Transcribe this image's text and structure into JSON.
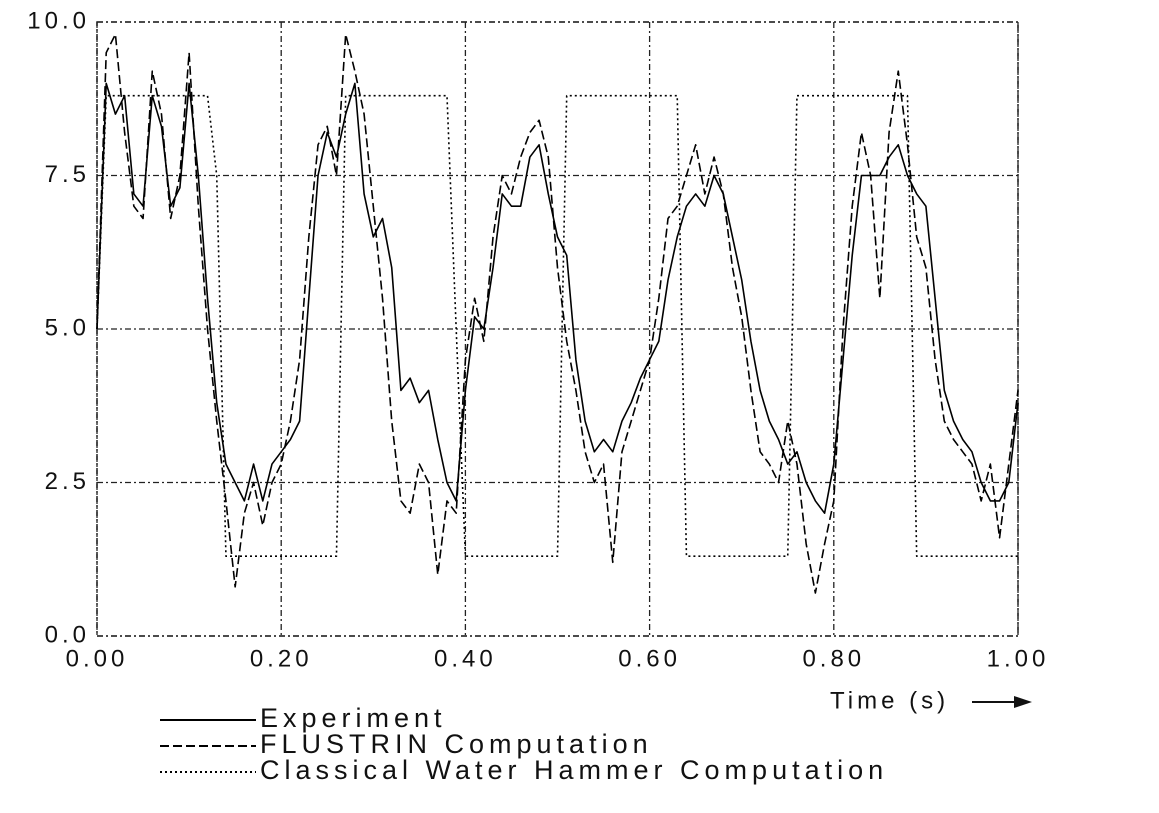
{
  "chart_data": {
    "type": "line",
    "x_label": "Time (s)",
    "x": [
      0,
      0.01,
      0.02,
      0.03,
      0.04,
      0.05,
      0.06,
      0.07,
      0.08,
      0.09,
      0.1,
      0.11,
      0.12,
      0.13,
      0.14,
      0.15,
      0.16,
      0.17,
      0.18,
      0.19,
      0.2,
      0.21,
      0.22,
      0.23,
      0.24,
      0.25,
      0.26,
      0.27,
      0.28,
      0.29,
      0.3,
      0.31,
      0.32,
      0.33,
      0.34,
      0.35,
      0.36,
      0.37,
      0.38,
      0.39,
      0.4,
      0.41,
      0.42,
      0.43,
      0.44,
      0.45,
      0.46,
      0.47,
      0.48,
      0.49,
      0.5,
      0.51,
      0.52,
      0.53,
      0.54,
      0.55,
      0.56,
      0.57,
      0.58,
      0.59,
      0.6,
      0.61,
      0.62,
      0.63,
      0.64,
      0.65,
      0.66,
      0.67,
      0.68,
      0.69,
      0.7,
      0.71,
      0.72,
      0.73,
      0.74,
      0.75,
      0.76,
      0.77,
      0.78,
      0.79,
      0.8,
      0.81,
      0.82,
      0.83,
      0.84,
      0.85,
      0.86,
      0.87,
      0.88,
      0.89,
      0.9,
      0.91,
      0.92,
      0.93,
      0.94,
      0.95,
      0.96,
      0.97,
      0.98,
      0.99,
      1.0
    ],
    "series": [
      {
        "name": "Experiment",
        "color": "#000000",
        "line_style": "solid",
        "values": [
          5.0,
          9.0,
          8.5,
          8.8,
          7.2,
          7.0,
          8.8,
          8.3,
          7.0,
          7.3,
          9.0,
          7.5,
          5.5,
          3.8,
          2.8,
          2.5,
          2.2,
          2.8,
          2.2,
          2.8,
          3.0,
          3.2,
          3.5,
          5.5,
          7.5,
          8.2,
          7.8,
          8.5,
          9.0,
          7.2,
          6.5,
          6.8,
          6.0,
          4.0,
          4.2,
          3.8,
          4.0,
          3.2,
          2.5,
          2.2,
          4.0,
          5.2,
          5.0,
          6.0,
          7.2,
          7.0,
          7.0,
          7.8,
          8.0,
          7.2,
          6.5,
          6.2,
          4.5,
          3.5,
          3.0,
          3.2,
          3.0,
          3.5,
          3.8,
          4.2,
          4.5,
          4.8,
          5.8,
          6.5,
          7.0,
          7.2,
          7.0,
          7.5,
          7.2,
          6.5,
          5.8,
          4.8,
          4.0,
          3.5,
          3.2,
          2.8,
          3.0,
          2.5,
          2.2,
          2.0,
          2.8,
          4.5,
          6.2,
          7.5,
          7.5,
          7.5,
          7.8,
          8.0,
          7.5,
          7.2,
          7.0,
          5.5,
          4.0,
          3.5,
          3.2,
          3.0,
          2.5,
          2.2,
          2.2,
          2.5,
          3.8
        ]
      },
      {
        "name": "FLUSTRIN Computation",
        "color": "#000000",
        "line_style": "dashed",
        "values": [
          5.0,
          9.5,
          9.8,
          8.2,
          7.0,
          6.8,
          9.2,
          8.5,
          6.8,
          7.5,
          9.5,
          7.0,
          5.0,
          3.5,
          2.2,
          0.8,
          2.0,
          2.5,
          1.8,
          2.5,
          2.8,
          3.5,
          4.5,
          6.5,
          8.0,
          8.3,
          7.5,
          9.8,
          9.2,
          8.5,
          7.0,
          5.5,
          3.5,
          2.2,
          2.0,
          2.8,
          2.5,
          1.0,
          2.2,
          2.0,
          4.5,
          5.5,
          4.8,
          6.5,
          7.5,
          7.2,
          7.8,
          8.2,
          8.4,
          7.8,
          6.0,
          4.8,
          4.0,
          3.0,
          2.5,
          2.8,
          1.2,
          3.0,
          3.5,
          4.0,
          4.5,
          5.5,
          6.8,
          7.0,
          7.5,
          8.0,
          7.2,
          7.8,
          7.2,
          6.0,
          5.2,
          4.0,
          3.0,
          2.8,
          2.5,
          3.5,
          2.8,
          1.5,
          0.7,
          1.5,
          2.2,
          5.0,
          7.0,
          8.2,
          7.5,
          5.5,
          8.2,
          9.2,
          8.0,
          6.5,
          6.0,
          4.5,
          3.5,
          3.2,
          3.0,
          2.8,
          2.2,
          2.8,
          1.6,
          2.8,
          4.0
        ]
      },
      {
        "name": "Classical Water Hammer Computation",
        "color": "#000000",
        "line_style": "dotted",
        "values": [
          5.0,
          8.8,
          8.8,
          8.8,
          8.8,
          8.8,
          8.8,
          8.8,
          8.8,
          8.8,
          8.8,
          8.8,
          8.8,
          7.5,
          1.3,
          1.3,
          1.3,
          1.3,
          1.3,
          1.3,
          1.3,
          1.3,
          1.3,
          1.3,
          1.3,
          1.3,
          1.3,
          8.8,
          8.8,
          8.8,
          8.8,
          8.8,
          8.8,
          8.8,
          8.8,
          8.8,
          8.8,
          8.8,
          8.8,
          5.0,
          1.3,
          1.3,
          1.3,
          1.3,
          1.3,
          1.3,
          1.3,
          1.3,
          1.3,
          1.3,
          1.3,
          8.8,
          8.8,
          8.8,
          8.8,
          8.8,
          8.8,
          8.8,
          8.8,
          8.8,
          8.8,
          8.8,
          8.8,
          8.8,
          1.3,
          1.3,
          1.3,
          1.3,
          1.3,
          1.3,
          1.3,
          1.3,
          1.3,
          1.3,
          1.3,
          1.3,
          8.8,
          8.8,
          8.8,
          8.8,
          8.8,
          8.8,
          8.8,
          8.8,
          8.8,
          8.8,
          8.8,
          8.8,
          8.8,
          1.3,
          1.3,
          1.3,
          1.3,
          1.3,
          1.3,
          1.3,
          1.3,
          1.3,
          1.3,
          1.3,
          1.3
        ]
      }
    ],
    "xlim": [
      0,
      1
    ],
    "ylim": [
      0,
      10
    ],
    "xticks": [
      {
        "value": 0,
        "label": "0.00"
      },
      {
        "value": 0.2,
        "label": "0.20"
      },
      {
        "value": 0.4,
        "label": "0.40"
      },
      {
        "value": 0.6,
        "label": "0.60"
      },
      {
        "value": 0.8,
        "label": "0.80"
      },
      {
        "value": 1,
        "label": "1.00"
      }
    ],
    "yticks": [
      {
        "value": 0,
        "label": "0.0"
      },
      {
        "value": 2.5,
        "label": "2.5"
      },
      {
        "value": 5,
        "label": "5.0"
      },
      {
        "value": 7.5,
        "label": "7.5"
      },
      {
        "value": 10,
        "label": "10.0"
      }
    ],
    "grid": true
  }
}
